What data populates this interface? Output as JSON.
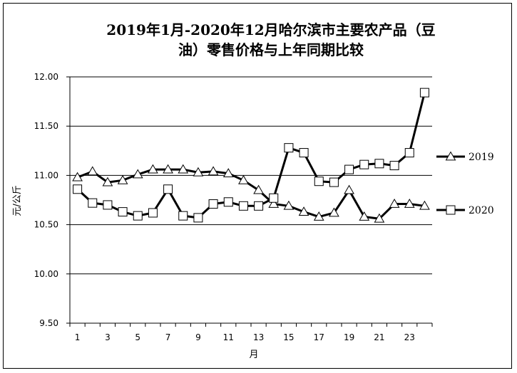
{
  "chart_data": {
    "type": "line",
    "title": "2019年1月-2020年12月哈尔滨市主要农产品（豆油）零售价格与上年同期比较",
    "title_line1": "2019年1月-2020年12月哈尔滨市主要农产品（豆",
    "title_line2": "油）零售价格与上年同期比较",
    "xlabel": "月",
    "ylabel": "元/公斤",
    "ylim": [
      9.5,
      12.0
    ],
    "yticks": [
      "9.50",
      "10.00",
      "10.50",
      "11.00",
      "11.50",
      "12.00"
    ],
    "xticks": [
      "1",
      "3",
      "5",
      "7",
      "9",
      "11",
      "13",
      "15",
      "17",
      "19",
      "21",
      "23"
    ],
    "x": [
      1,
      2,
      3,
      4,
      5,
      6,
      7,
      8,
      9,
      10,
      11,
      12,
      13,
      14,
      15,
      16,
      17,
      18,
      19,
      20,
      21,
      22,
      23,
      24
    ],
    "grid": "horizontal",
    "legend_position": "right",
    "series": [
      {
        "name": "2019",
        "marker": "triangle",
        "values": [
          10.98,
          11.04,
          10.93,
          10.95,
          11.01,
          11.06,
          11.06,
          11.06,
          11.03,
          11.04,
          11.02,
          10.95,
          10.85,
          10.71,
          10.69,
          10.63,
          10.58,
          10.62,
          10.85,
          10.58,
          10.56,
          10.71,
          10.71,
          10.69
        ]
      },
      {
        "name": "2020",
        "marker": "square",
        "values": [
          10.86,
          10.72,
          10.7,
          10.63,
          10.59,
          10.62,
          10.86,
          10.59,
          10.57,
          10.71,
          10.73,
          10.69,
          10.69,
          10.77,
          11.28,
          11.23,
          10.94,
          10.93,
          11.06,
          11.11,
          11.12,
          11.1,
          11.23,
          11.84
        ]
      }
    ]
  }
}
